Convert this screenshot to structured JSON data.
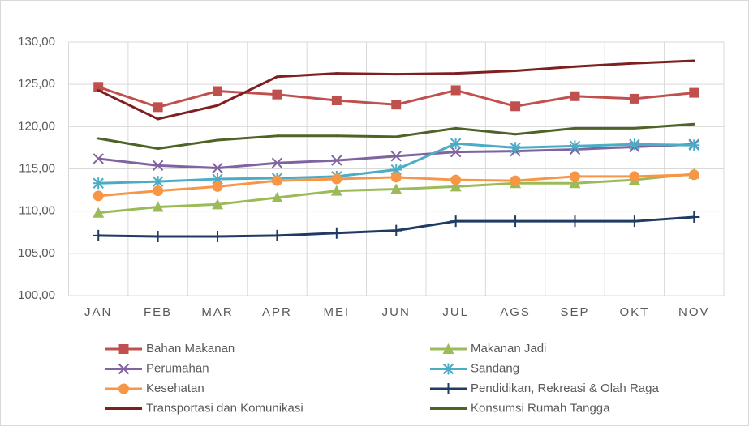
{
  "chart_data": {
    "type": "line",
    "categories": [
      "JAN",
      "FEB",
      "MAR",
      "APR",
      "MEI",
      "JUN",
      "JUL",
      "AGS",
      "SEP",
      "OKT",
      "NOV"
    ],
    "ylim": [
      100,
      130
    ],
    "yticks": [
      {
        "value": 100,
        "label": "100,00"
      },
      {
        "value": 105,
        "label": "105,00"
      },
      {
        "value": 110,
        "label": "110,00"
      },
      {
        "value": 115,
        "label": "115,00"
      },
      {
        "value": 120,
        "label": "120,00"
      },
      {
        "value": 125,
        "label": "125,00"
      },
      {
        "value": 130,
        "label": "130,00"
      }
    ],
    "grid": true,
    "legend": "bottom",
    "series": [
      {
        "name": "Bahan Makanan",
        "color": "#c0504d",
        "marker": "square",
        "values": [
          124.7,
          122.3,
          124.2,
          123.8,
          123.1,
          122.6,
          124.3,
          122.4,
          123.6,
          123.3,
          124.0
        ]
      },
      {
        "name": "Makanan Jadi",
        "color": "#9bbb59",
        "marker": "triangle",
        "values": [
          109.8,
          110.5,
          110.8,
          111.6,
          112.4,
          112.6,
          112.9,
          113.3,
          113.3,
          113.7,
          114.4
        ]
      },
      {
        "name": "Perumahan",
        "color": "#8064a2",
        "marker": "x",
        "values": [
          116.2,
          115.4,
          115.1,
          115.7,
          116.0,
          116.5,
          117.0,
          117.1,
          117.3,
          117.6,
          117.9
        ]
      },
      {
        "name": "Sandang",
        "color": "#4bacc6",
        "marker": "star",
        "values": [
          113.3,
          113.5,
          113.8,
          113.9,
          114.1,
          114.9,
          118.0,
          117.5,
          117.7,
          117.9,
          117.8
        ]
      },
      {
        "name": "Kesehatan",
        "color": "#f79646",
        "marker": "circle",
        "values": [
          111.8,
          112.4,
          112.9,
          113.6,
          113.8,
          114.0,
          113.7,
          113.6,
          114.1,
          114.1,
          114.3
        ]
      },
      {
        "name": "Pendidikan, Rekreasi & Olah Raga",
        "color": "#1f3b63",
        "marker": "plus",
        "values": [
          107.1,
          107.0,
          107.0,
          107.1,
          107.4,
          107.7,
          108.8,
          108.8,
          108.8,
          108.8,
          109.3
        ]
      },
      {
        "name": "Transportasi dan Komunikasi",
        "color": "#7f1f1f",
        "marker": "none",
        "values": [
          124.3,
          120.9,
          122.5,
          125.9,
          126.3,
          126.2,
          126.3,
          126.6,
          127.1,
          127.5,
          127.8
        ]
      },
      {
        "name": "Konsumsi Rumah Tangga",
        "color": "#4f6228",
        "marker": "none",
        "values": [
          118.6,
          117.4,
          118.4,
          118.9,
          118.9,
          118.8,
          119.8,
          119.1,
          119.8,
          119.8,
          120.3
        ]
      }
    ]
  }
}
